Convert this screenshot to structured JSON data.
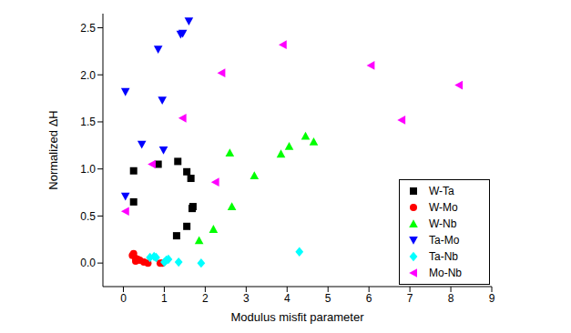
{
  "chart_data": {
    "type": "scatter",
    "x_label": "Modulus misfit parameter",
    "y_label": "Normalized ΔH",
    "xlim": [
      -0.5,
      9
    ],
    "xticks": [
      0,
      1,
      2,
      3,
      4,
      5,
      6,
      7,
      8,
      9
    ],
    "ylim": [
      -0.25,
      2.65
    ],
    "yticks": [
      {
        "value": 0,
        "label": "0.0"
      },
      {
        "value": 0.5,
        "label": "0.5"
      },
      {
        "value": 1,
        "label": "1.0"
      },
      {
        "value": 1.5,
        "label": "1.5"
      },
      {
        "value": 2,
        "label": "2.0"
      },
      {
        "value": 2.5,
        "label": "2.5"
      }
    ],
    "grid": false,
    "legend": "lower right",
    "series": [
      {
        "name": "W-Ta",
        "color": "#000000",
        "marker": "square",
        "x": [
          0.25,
          0.25,
          0.85,
          1.33,
          1.55,
          1.65,
          1.7,
          1.68,
          1.3,
          1.55
        ],
        "values": [
          0.98,
          0.65,
          1.05,
          1.08,
          0.97,
          0.9,
          0.6,
          0.58,
          0.29,
          0.39
        ]
      },
      {
        "name": "W-Mo",
        "color": "#ff0000",
        "marker": "circle",
        "x": [
          0.22,
          0.25,
          0.3,
          0.3,
          0.35,
          0.4,
          0.5,
          0.6,
          0.9,
          0.95
        ],
        "values": [
          0.08,
          0.1,
          0.05,
          0.02,
          0.04,
          0.03,
          0.01,
          0.0,
          0.0,
          0.0
        ]
      },
      {
        "name": "W-Nb",
        "color": "#00ff00",
        "marker": "triangle-up",
        "x": [
          1.85,
          2.2,
          2.6,
          2.65,
          3.2,
          3.85,
          4.05,
          4.45,
          4.65
        ],
        "values": [
          0.24,
          0.36,
          1.17,
          0.6,
          0.93,
          1.16,
          1.24,
          1.35,
          1.29
        ]
      },
      {
        "name": "Ta-Mo",
        "color": "#0000ff",
        "marker": "triangle-down",
        "x": [
          0.05,
          0.05,
          0.45,
          0.85,
          0.95,
          0.98,
          1.4,
          1.45,
          1.6
        ],
        "values": [
          0.71,
          1.82,
          1.26,
          2.27,
          1.73,
          1.2,
          2.43,
          2.44,
          2.57
        ]
      },
      {
        "name": "Ta-Nb",
        "color": "#00ffff",
        "marker": "diamond",
        "x": [
          0.65,
          0.75,
          0.8,
          1.0,
          1.05,
          1.1,
          1.35,
          1.9,
          4.3
        ],
        "values": [
          0.06,
          0.07,
          0.06,
          0.01,
          0.03,
          0.04,
          0.01,
          0.0,
          0.12
        ]
      },
      {
        "name": "Mo-Nb",
        "color": "#ff00ff",
        "marker": "triangle-left",
        "x": [
          0.05,
          0.7,
          1.45,
          2.25,
          2.4,
          3.9,
          6.05,
          6.8,
          8.2
        ],
        "values": [
          0.55,
          1.05,
          1.54,
          0.86,
          2.02,
          2.32,
          2.1,
          1.52,
          1.89
        ]
      }
    ]
  }
}
